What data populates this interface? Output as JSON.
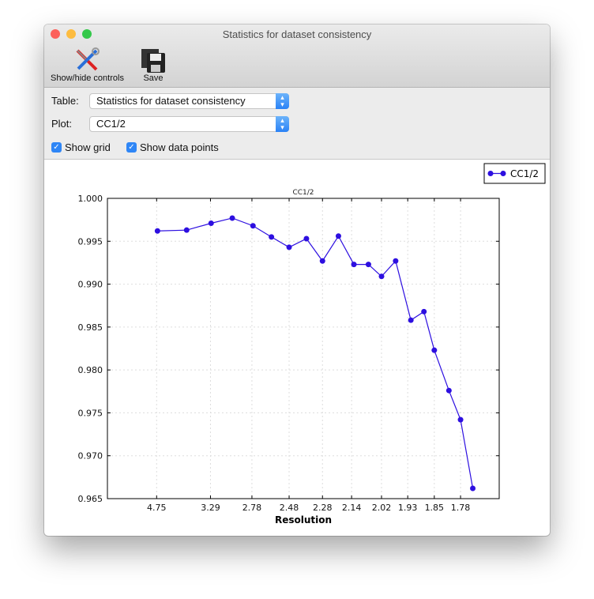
{
  "window": {
    "title": "Statistics for dataset consistency"
  },
  "toolbar": {
    "controls_label": "Show/hide controls",
    "save_label": "Save"
  },
  "controls": {
    "table_label": "Table:",
    "table_value": "Statistics for dataset consistency",
    "plot_label": "Plot:",
    "plot_value": "CC1/2",
    "show_grid_label": "Show grid",
    "show_grid": true,
    "show_points_label": "Show data points",
    "show_points": true
  },
  "colors": {
    "series": "#2d0fe0",
    "close": "#fc605b",
    "minimize": "#fdbc40",
    "zoom": "#34c84a"
  },
  "chart_data": {
    "type": "line",
    "title": "CC1/2",
    "xlabel": "Resolution",
    "ylabel": "",
    "x_scale": "1/d^2 (labels show resolution d)",
    "xlim": [
      50,
      1.69
    ],
    "ylim": [
      0.965,
      1.0
    ],
    "grid": true,
    "markers": true,
    "legend": "top-right",
    "xticks": [
      "4.75",
      "3.29",
      "2.78",
      "2.48",
      "2.28",
      "2.14",
      "2.02",
      "1.93",
      "1.85",
      "1.78"
    ],
    "yticks": [
      "1.000",
      "0.995",
      "0.990",
      "0.985",
      "0.980",
      "0.975",
      "0.970",
      "0.965"
    ],
    "series": [
      {
        "name": "CC1/2",
        "x": [
          4.71,
          3.75,
          3.28,
          2.99,
          2.77,
          2.61,
          2.48,
          2.37,
          2.28,
          2.2,
          2.13,
          2.07,
          2.02,
          1.97,
          1.92,
          1.88,
          1.85,
          1.81,
          1.78,
          1.75
        ],
        "y": [
          0.9962,
          0.9963,
          0.9971,
          0.9977,
          0.9968,
          0.9955,
          0.9943,
          0.9953,
          0.9927,
          0.9956,
          0.9923,
          0.9923,
          0.9909,
          0.9927,
          0.9858,
          0.9868,
          0.9823,
          0.9776,
          0.9742,
          0.9662
        ]
      }
    ]
  }
}
